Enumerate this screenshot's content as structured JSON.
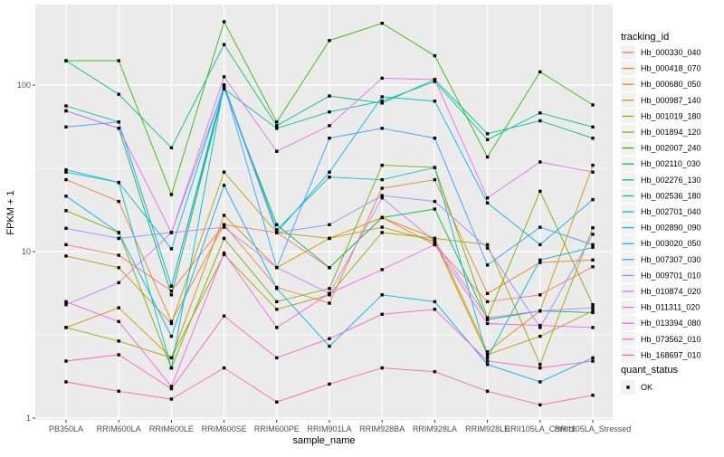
{
  "chart_data": {
    "type": "line",
    "title": "",
    "xlabel": "sample_name",
    "ylabel": "FPKM + 1",
    "y_scale": "log10",
    "ylim": [
      1,
      300
    ],
    "y_major_gridlines": [
      1,
      10,
      100
    ],
    "y_minor_gridlines": [
      3.162,
      31.62
    ],
    "y_tick_labels": [
      "1",
      "10",
      "100"
    ],
    "grid": "on",
    "legend_position": "right",
    "legend_title": "tracking_id",
    "point_legend": {
      "title": "quant_status",
      "label": "OK",
      "marker": "black-square"
    },
    "categories": [
      "PB350LA",
      "RRIM600LA",
      "RRIM600LE",
      "RRIM600SE",
      "RRIM600PE",
      "RRIM901LA",
      "RRIM928BA",
      "RRIM928LA",
      "RRIM928LE",
      "RRII105LA_Control",
      "RRII105LA_Stressed"
    ],
    "series": [
      {
        "name": "Hb_000330_040",
        "color": "#F8766D",
        "values": [
          11,
          9.5,
          5.8,
          14.5,
          13,
          8,
          16,
          11,
          5,
          5.5,
          8.1
        ]
      },
      {
        "name": "Hb_000418_070",
        "color": "#EA8331",
        "values": [
          27,
          20,
          3.8,
          14.5,
          6.1,
          4.9,
          24,
          27,
          5.6,
          8.6,
          8.9
        ]
      },
      {
        "name": "Hb_000680_050",
        "color": "#D89000",
        "values": [
          3.5,
          4.6,
          2.3,
          16.5,
          8,
          12,
          16,
          12,
          2.5,
          4.4,
          33
        ]
      },
      {
        "name": "Hb_000987_140",
        "color": "#C09B00",
        "values": [
          9.4,
          8,
          3.7,
          30,
          13,
          12,
          14,
          11.5,
          2.4,
          3.1,
          4.4
        ]
      },
      {
        "name": "Hb_001019_180",
        "color": "#A3A500",
        "values": [
          3.5,
          2.9,
          2.3,
          9.6,
          4.5,
          5.5,
          13,
          12,
          11,
          2.1,
          13.9
        ]
      },
      {
        "name": "Hb_001894_120",
        "color": "#7CAE00",
        "values": [
          17.6,
          13,
          2,
          12,
          5,
          6,
          33,
          32,
          4,
          23,
          4.8
        ]
      },
      {
        "name": "Hb_002007_240",
        "color": "#39B600",
        "values": [
          140,
          140,
          22,
          240,
          60,
          185,
          235,
          150,
          37,
          120,
          76
        ]
      },
      {
        "name": "Hb_002110_030",
        "color": "#00BB4E",
        "values": [
          70,
          55,
          5.5,
          95,
          14.5,
          8,
          16,
          18,
          3.9,
          4.4,
          4.3
        ]
      },
      {
        "name": "Hb_002276_130",
        "color": "#00BF7D",
        "values": [
          140,
          88,
          42,
          175,
          57,
          86,
          78,
          108,
          51,
          61,
          48
        ]
      },
      {
        "name": "Hb_002536_180",
        "color": "#00C1A3",
        "values": [
          75,
          60,
          6.2,
          95,
          55,
          69,
          80,
          105,
          47,
          68,
          56
        ]
      },
      {
        "name": "Hb_002701_040",
        "color": "#00BFC4",
        "values": [
          30,
          26,
          2,
          100,
          13.5,
          28,
          27,
          32,
          2.3,
          8.9,
          10.6
        ]
      },
      {
        "name": "Hb_002890_090",
        "color": "#00BAE0",
        "values": [
          31,
          26,
          10.4,
          100,
          13,
          30,
          85,
          80,
          19.6,
          11,
          20.5
        ]
      },
      {
        "name": "Hb_003020_050",
        "color": "#00B0F6",
        "values": [
          21.5,
          13,
          3.1,
          25,
          6,
          2.7,
          5.5,
          5,
          2.1,
          1.65,
          2.3
        ]
      },
      {
        "name": "Hb_007307_030",
        "color": "#35A2FF",
        "values": [
          56,
          60,
          6.2,
          100,
          8,
          48,
          55,
          48,
          8.3,
          14,
          11
        ]
      },
      {
        "name": "Hb_009701_010",
        "color": "#9590FF",
        "values": [
          13.8,
          12,
          13,
          97,
          13,
          14.5,
          21.7,
          20,
          10.5,
          3.5,
          12.7
        ]
      },
      {
        "name": "Hb_010874_020",
        "color": "#C77CFF",
        "values": [
          4.8,
          6.5,
          13,
          14,
          8,
          5.6,
          21,
          11.5,
          4,
          4.4,
          4.6
        ]
      },
      {
        "name": "Hb_011311_020",
        "color": "#E76BF3",
        "values": [
          70,
          55,
          13,
          112,
          40,
          57,
          110,
          108,
          21,
          34.5,
          30
        ]
      },
      {
        "name": "Hb_013394_080",
        "color": "#FA62DB",
        "values": [
          5,
          3.8,
          1.55,
          9.8,
          3.5,
          5.6,
          7.8,
          11,
          3.7,
          3.6,
          3.5
        ]
      },
      {
        "name": "Hb_073562_010",
        "color": "#FF62BC",
        "values": [
          2.2,
          2.4,
          1.5,
          4.1,
          2.3,
          3,
          4.2,
          4.5,
          2.2,
          2,
          2.2
        ]
      },
      {
        "name": "Hb_168697_010",
        "color": "#FF6A98",
        "values": [
          1.65,
          1.45,
          1.3,
          2,
          1.25,
          1.6,
          2,
          1.9,
          1.45,
          1.2,
          1.37
        ]
      }
    ]
  },
  "style_colors": {
    "panel_background": "#EBEBEB",
    "gridline": "#FFFFFF",
    "axis_text": "#4D4D4D",
    "tick_mark": "#333333",
    "title_text": "#000000",
    "legend_key_background": "#F2F2F2",
    "point_marker": "#000000"
  }
}
